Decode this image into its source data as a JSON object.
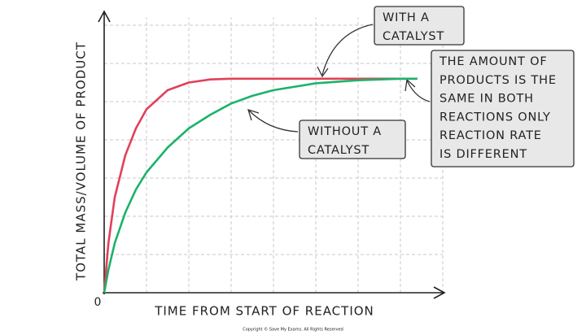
{
  "chart_data": {
    "type": "line",
    "x_label": "TIME FROM START OF REACTION",
    "y_label": "TOTAL MASS/VOLUME OF PRODUCT",
    "x": [
      0,
      0.1,
      0.25,
      0.5,
      0.75,
      1,
      1.5,
      2,
      2.5,
      3,
      3.5,
      4,
      5,
      6,
      7,
      7.4
    ],
    "series": [
      {
        "color": "#e2405a",
        "values": [
          0,
          1.3,
          2.5,
          3.6,
          4.3,
          4.8,
          5.3,
          5.5,
          5.58,
          5.6,
          5.6,
          5.6,
          5.6,
          5.6,
          5.6,
          5.6
        ]
      },
      {
        "color": "#1cb26b",
        "values": [
          0,
          0.6,
          1.3,
          2.1,
          2.7,
          3.15,
          3.8,
          4.3,
          4.65,
          4.95,
          5.15,
          5.3,
          5.48,
          5.56,
          5.6,
          5.6
        ]
      }
    ],
    "xlim": [
      0,
      8
    ],
    "ylim": [
      0,
      7.2
    ],
    "xticks": [
      0
    ],
    "grid": true,
    "annotations": [
      {
        "lines": [
          "WITH A",
          "CATALYST"
        ]
      },
      {
        "lines": [
          "WITHOUT A",
          "CATALYST"
        ]
      },
      {
        "lines": [
          "THE AMOUNT OF",
          "PRODUCTS IS THE",
          "SAME IN BOTH",
          "REACTIONS ONLY",
          "REACTION RATE",
          "IS DIFFERENT"
        ]
      }
    ],
    "footer": "Copyright © Save My Exams. All Rights Reserved"
  }
}
